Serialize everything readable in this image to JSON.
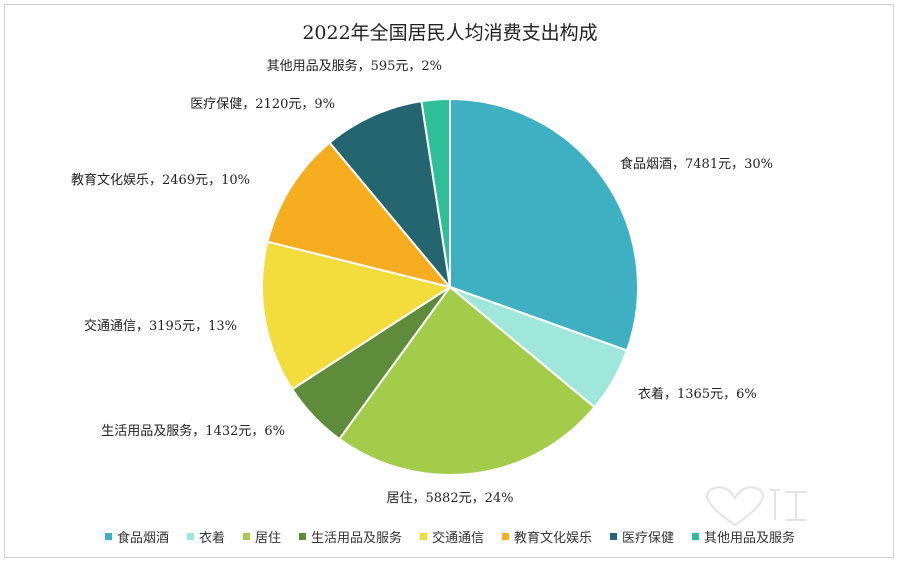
{
  "chart_data": {
    "type": "pie",
    "title": "2022年全国居民人均消费支出构成",
    "categories": [
      "食品烟酒",
      "衣着",
      "居住",
      "生活用品及服务",
      "交通通信",
      "教育文化娱乐",
      "医疗保健",
      "其他用品及服务"
    ],
    "values": [
      7481,
      1365,
      5882,
      1432,
      3195,
      2469,
      2120,
      595
    ],
    "percents": [
      "30%",
      "6%",
      "24%",
      "6%",
      "13%",
      "10%",
      "9%",
      "2%"
    ],
    "unit": "元",
    "colors": [
      "#3fb0c1",
      "#9ee7da",
      "#a3cc4a",
      "#5e8c3a",
      "#f3dc3c",
      "#f6ad1f",
      "#246570",
      "#2fbf97"
    ],
    "data_labels": [
      "食品烟酒，7481元，30%",
      "衣着，1365元，6%",
      "居住，5882元，24%",
      "生活用品及服务，1432元，6%",
      "交通通信，3195元，13%",
      "教育文化娱乐，2469元，10%",
      "医疗保健，2120元，9%",
      "其他用品及服务，595元，2%"
    ],
    "legend_position": "bottom"
  }
}
